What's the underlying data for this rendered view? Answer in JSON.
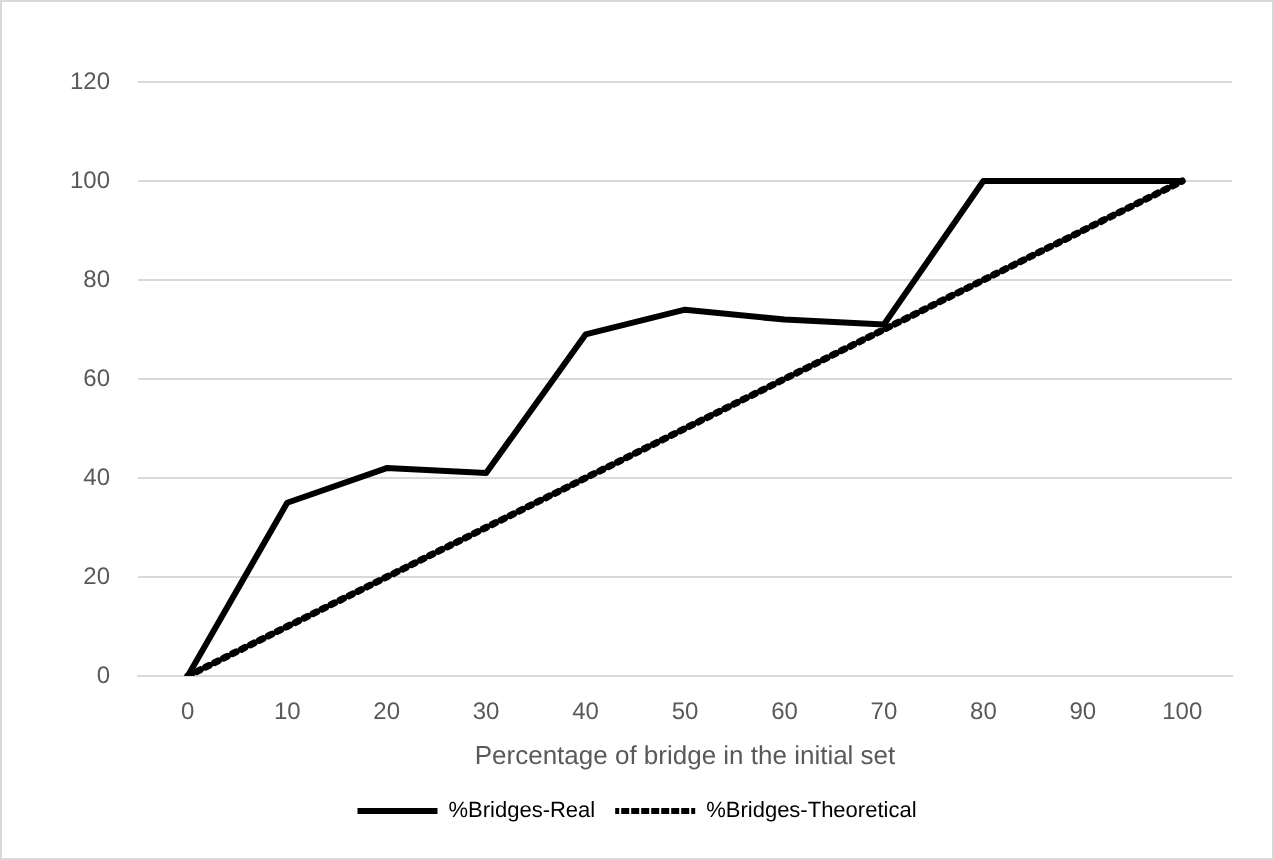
{
  "chart_data": {
    "type": "line",
    "xlabel": "Percentage of bridge in the initial set",
    "categories": [
      "0",
      "10",
      "20",
      "30",
      "40",
      "50",
      "60",
      "70",
      "80",
      "90",
      "100"
    ],
    "series": [
      {
        "name": "%Bridges-Real",
        "color": "#000000",
        "line_style": "solid",
        "values": [
          0,
          35,
          42,
          41,
          69,
          74,
          72,
          71,
          100,
          100,
          100
        ]
      },
      {
        "name": "%Bridges-Theoretical",
        "color": "#000000",
        "line_style": "dotted",
        "values": [
          0,
          10,
          20,
          30,
          40,
          50,
          60,
          70,
          80,
          90,
          100
        ]
      }
    ],
    "ylim": [
      0,
      120
    ],
    "yticks": [
      0,
      20,
      40,
      60,
      80,
      100,
      120
    ],
    "grid": "y",
    "legend": "bottom",
    "marker": "none"
  }
}
